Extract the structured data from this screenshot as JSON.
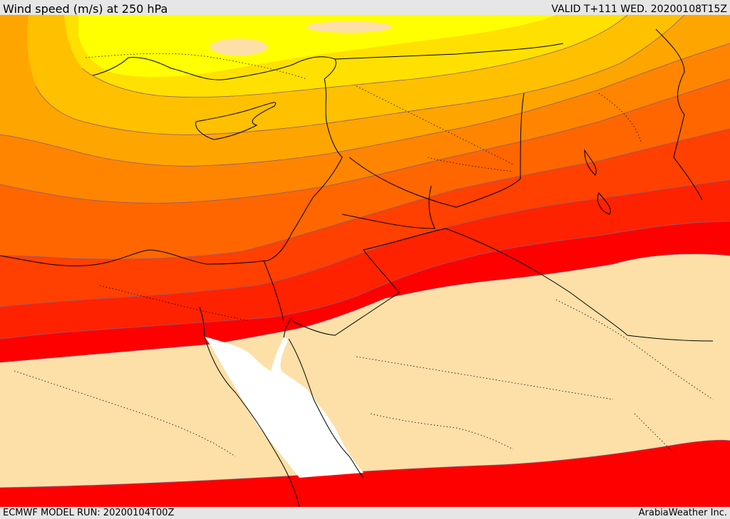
{
  "header": {
    "title": "Wind speed (m/s) at 250 hPa",
    "valid": "VALID T+111 WED. 20200108T15Z"
  },
  "footer": {
    "model_run": "ECMWF MODEL RUN: 20200104T00Z",
    "credit": "ArabiaWeather Inc."
  },
  "colors": {
    "very_low": "#fde0a8",
    "yellow": "#ffff00",
    "gold": "#ffe000",
    "amber": "#ffc000",
    "orange_light": "#ffa500",
    "orange": "#ff8500",
    "orange_dark": "#ff6600",
    "red_orange": "#ff4000",
    "red": "#ff2200",
    "deep_red": "#ff0000",
    "sea": "#ffffff",
    "coastline": "#000000",
    "contour": "#8a5a7a"
  },
  "icons": {
    "map": "wind-speed-map"
  }
}
